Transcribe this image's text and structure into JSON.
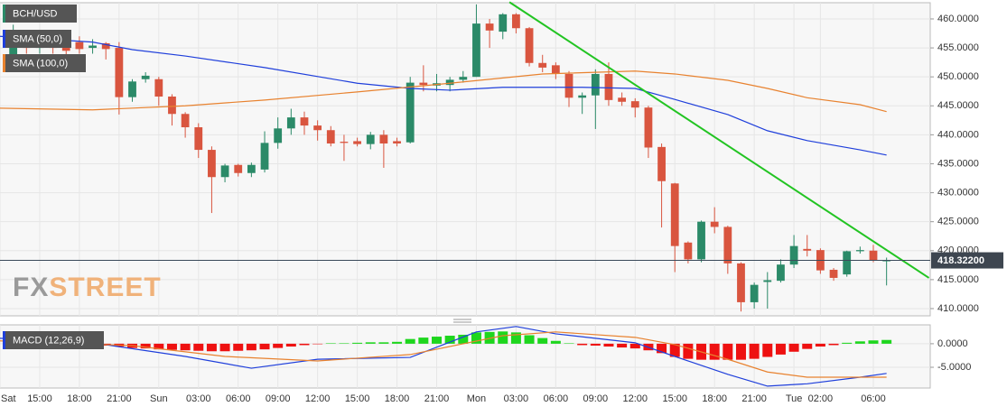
{
  "chart_data": [
    {
      "type": "candlestick",
      "symbol": "BCH/USD",
      "x": [
        1,
        2,
        3,
        4,
        5,
        6,
        7,
        8,
        9,
        10,
        11,
        12,
        13,
        14,
        15,
        16,
        17,
        18,
        19,
        20,
        21,
        22,
        23,
        24,
        25,
        26,
        27,
        28,
        29,
        30,
        31,
        32,
        33,
        34,
        35,
        36,
        37,
        38,
        39,
        40,
        41,
        42,
        43,
        44,
        45,
        46,
        47,
        48,
        49,
        50,
        51,
        52,
        53,
        54,
        55,
        56,
        57,
        58,
        59,
        60,
        61,
        62,
        63,
        64,
        65,
        66,
        67
      ],
      "open": [
        452,
        457,
        455,
        456,
        455.5,
        456,
        455,
        455.8,
        455,
        446.5,
        449.6,
        449.6,
        446.6,
        443.6,
        441.3,
        437.4,
        432.7,
        434.8,
        433.4,
        434,
        438.6,
        441.1,
        443,
        441.6,
        440.8,
        438.8,
        438.9,
        438.4,
        440,
        438.9,
        438.7,
        449,
        448.5,
        448.6,
        449.5,
        450,
        459.2,
        457.8,
        460.8,
        458.4,
        452.4,
        452,
        450.5,
        446.4,
        446.8,
        450.5,
        446.4,
        445.8,
        444.7,
        437.9,
        431.6,
        421.4,
        418.5,
        425,
        424.1,
        417.8,
        411.1,
        414.6,
        414.8,
        417.6,
        420.3,
        420.1,
        416.7,
        415.9,
        419.9,
        420,
        418.3
      ],
      "high": [
        459,
        458,
        457,
        457,
        456,
        457,
        456.5,
        456,
        456,
        449.6,
        450.8,
        450,
        447,
        443.9,
        442,
        438,
        435,
        435,
        435.2,
        440.6,
        443,
        444.5,
        444,
        442.5,
        441.5,
        440,
        439.5,
        440.5,
        440.8,
        439.5,
        450,
        452,
        450.5,
        450,
        451,
        462.5,
        460,
        461,
        461,
        458.6,
        453.8,
        452.5,
        451,
        447.3,
        451.3,
        452.5,
        447.3,
        446.3,
        445,
        438.5,
        431.7,
        421.6,
        425.2,
        427.5,
        424.3,
        418,
        414.5,
        416.3,
        418.5,
        422.7,
        422.7,
        420.4,
        417,
        420,
        420.7,
        421,
        418.8
      ],
      "low": [
        451,
        454,
        454,
        454,
        453.5,
        454,
        454,
        453,
        443.5,
        445.7,
        449,
        445,
        441.6,
        439.5,
        436,
        426.5,
        431.8,
        432.8,
        432.7,
        433.5,
        437.6,
        440,
        440,
        439,
        438,
        435.5,
        438,
        437.5,
        434.3,
        438,
        438.5,
        447.5,
        447.5,
        447.5,
        449,
        450,
        455,
        456.5,
        457.5,
        451.8,
        450.8,
        449.6,
        444.8,
        443.6,
        441,
        445,
        445,
        443,
        436,
        424,
        416.3,
        417.8,
        418,
        423,
        416,
        409.5,
        410,
        410,
        414.5,
        417,
        419,
        416,
        414.8,
        415.5,
        419.5,
        418,
        414
      ],
      "close": [
        458,
        455,
        456,
        455,
        454.5,
        454.8,
        455.4,
        454.8,
        446.5,
        449.2,
        450.2,
        446.6,
        443.6,
        441.3,
        437.4,
        432.7,
        434.7,
        433.4,
        434.8,
        438.6,
        441.1,
        443,
        441.6,
        440.8,
        438.5,
        438.6,
        438.4,
        440,
        438.5,
        438.5,
        449,
        448.6,
        448.9,
        449.5,
        450,
        459.2,
        458,
        460.8,
        458.4,
        452.4,
        451.6,
        450.5,
        446.4,
        446.8,
        450.5,
        446,
        445.7,
        444.7,
        437.8,
        432,
        420.8,
        418.5,
        425,
        424.1,
        417.8,
        411.1,
        414.1,
        414.9,
        417.6,
        420.8,
        420,
        416.6,
        415.3,
        419.9,
        420.1,
        418.3,
        418.32
      ],
      "up_color": "#2b8a68",
      "down_color": "#d9553f",
      "series": [
        {
          "name": "SMA (50,0)",
          "color": "#1f3fdb",
          "x": [
            0,
            7,
            10,
            14,
            20,
            27,
            31,
            34,
            38,
            41,
            44,
            48,
            51,
            55,
            58,
            61,
            65,
            67
          ],
          "values": [
            457.0,
            456.0,
            454.7,
            453.6,
            451.6,
            448.9,
            448.0,
            447.7,
            448.2,
            448.2,
            448.2,
            448.0,
            446.1,
            443.5,
            440.7,
            439.0,
            437.4,
            436.5
          ]
        },
        {
          "name": "SMA (100,0)",
          "color": "#e8822f",
          "x": [
            0,
            7,
            14,
            20,
            27,
            34,
            41,
            48,
            51,
            55,
            58,
            61,
            65,
            67
          ],
          "values": [
            444.6,
            444.3,
            445.0,
            446.0,
            447.4,
            448.9,
            450.5,
            451.0,
            450.5,
            449.4,
            448.0,
            446.4,
            445.2,
            444.0
          ]
        }
      ],
      "trendline": {
        "x": [
          38.5,
          70.2
        ],
        "values": [
          462.9,
          415.3
        ],
        "color": "#22c422"
      },
      "last_price": {
        "value": 418.322,
        "label": "418.32200"
      },
      "watermark": {
        "prefix": "FX",
        "suffix": "STREET"
      },
      "xlim": [
        0,
        70.3
      ],
      "ylim": [
        408.75,
        462.8
      ],
      "yticks": [
        {
          "value": 410,
          "label": "410.0000"
        },
        {
          "value": 415,
          "label": "415.0000"
        },
        {
          "value": 420,
          "label": "420.0000"
        },
        {
          "value": 425,
          "label": "425.0000"
        },
        {
          "value": 430,
          "label": "430.0000"
        },
        {
          "value": 435,
          "label": "435.0000"
        },
        {
          "value": 440,
          "label": "440.0000"
        },
        {
          "value": 445,
          "label": "445.0000"
        },
        {
          "value": 450,
          "label": "450.0000"
        },
        {
          "value": 455,
          "label": "455.0000"
        },
        {
          "value": 460,
          "label": "460.0000"
        }
      ],
      "grid": true
    },
    {
      "type": "macd",
      "title": "MACD (12,26,9)",
      "x": [
        1,
        2,
        3,
        4,
        5,
        6,
        7,
        8,
        9,
        10,
        11,
        12,
        13,
        14,
        15,
        16,
        17,
        18,
        19,
        20,
        21,
        22,
        23,
        24,
        25,
        26,
        27,
        28,
        29,
        30,
        31,
        32,
        33,
        34,
        35,
        36,
        37,
        38,
        39,
        40,
        41,
        42,
        43,
        44,
        45,
        46,
        47,
        48,
        49,
        50,
        51,
        52,
        53,
        54,
        55,
        56,
        57,
        58,
        59,
        60,
        61,
        62,
        63,
        64,
        65,
        66,
        67
      ],
      "histogram": [
        0.3,
        0.3,
        0.2,
        0.2,
        0.1,
        0,
        -0.1,
        -0.4,
        -0.6,
        -0.9,
        -1.0,
        -1.2,
        -1.3,
        -1.4,
        -1.5,
        -1.6,
        -1.6,
        -1.5,
        -1.4,
        -1.2,
        -0.9,
        -0.6,
        -0.3,
        -0.1,
        0.1,
        0.1,
        0.2,
        0.3,
        0.3,
        0.4,
        1.0,
        1.3,
        1.5,
        1.7,
        1.9,
        2.4,
        2.5,
        2.6,
        2.4,
        1.8,
        1.2,
        0.6,
        0.1,
        -0.3,
        -0.4,
        -0.6,
        -0.8,
        -1.0,
        -1.4,
        -2.0,
        -2.8,
        -3.2,
        -3.4,
        -3.4,
        -3.4,
        -3.4,
        -3.2,
        -2.8,
        -2.3,
        -1.7,
        -1.1,
        -0.6,
        -0.3,
        0.2,
        0.5,
        0.7,
        0.8
      ],
      "up_color": "#1ed61e",
      "down_color": "#ee1111",
      "series": [
        {
          "color": "#1f3fdb",
          "x": [
            0,
            7,
            14,
            19,
            24,
            31,
            36,
            39,
            42,
            48,
            51,
            55,
            58,
            61,
            65,
            67
          ],
          "values": [
            1.15,
            0.2,
            -2.7,
            -5.2,
            -3.3,
            -2.9,
            2.5,
            3.65,
            2.1,
            0.2,
            -2.7,
            -6.5,
            -9.0,
            -8.5,
            -7.1,
            -6.3
          ]
        },
        {
          "color": "#e8822f",
          "x": [
            0,
            10,
            17,
            24,
            31,
            38,
            42,
            48,
            51,
            55,
            58,
            61,
            67
          ],
          "values": [
            0.6,
            -0.4,
            -2.7,
            -3.65,
            -2.3,
            1.7,
            2.5,
            1.35,
            -0.2,
            -3.3,
            -6.0,
            -7.1,
            -7.1
          ]
        }
      ],
      "xlim": [
        0,
        70.3
      ],
      "ylim": [
        -9.4,
        4.0
      ],
      "yticks": [
        {
          "value": -5,
          "label": "-5.0000"
        },
        {
          "value": 0,
          "label": "0.0000"
        }
      ],
      "xticks": [
        {
          "value": 0,
          "label": "Sat"
        },
        {
          "value": 3,
          "label": "15:00"
        },
        {
          "value": 6,
          "label": "18:00"
        },
        {
          "value": 9,
          "label": "21:00"
        },
        {
          "value": 12,
          "label": "Sun"
        },
        {
          "value": 15,
          "label": "03:00"
        },
        {
          "value": 18,
          "label": "06:00"
        },
        {
          "value": 21,
          "label": "09:00"
        },
        {
          "value": 24,
          "label": "12:00"
        },
        {
          "value": 27,
          "label": "15:00"
        },
        {
          "value": 30,
          "label": "18:00"
        },
        {
          "value": 33,
          "label": "21:00"
        },
        {
          "value": 36,
          "label": "Mon"
        },
        {
          "value": 39,
          "label": "03:00"
        },
        {
          "value": 42,
          "label": "06:00"
        },
        {
          "value": 45,
          "label": "09:00"
        },
        {
          "value": 48,
          "label": "12:00"
        },
        {
          "value": 51,
          "label": "15:00"
        },
        {
          "value": 54,
          "label": "18:00"
        },
        {
          "value": 57,
          "label": "21:00"
        },
        {
          "value": 60,
          "label": "Tue"
        },
        {
          "value": 62,
          "label": "02:00"
        },
        {
          "value": 66,
          "label": "06:00"
        }
      ],
      "grid": true
    }
  ]
}
